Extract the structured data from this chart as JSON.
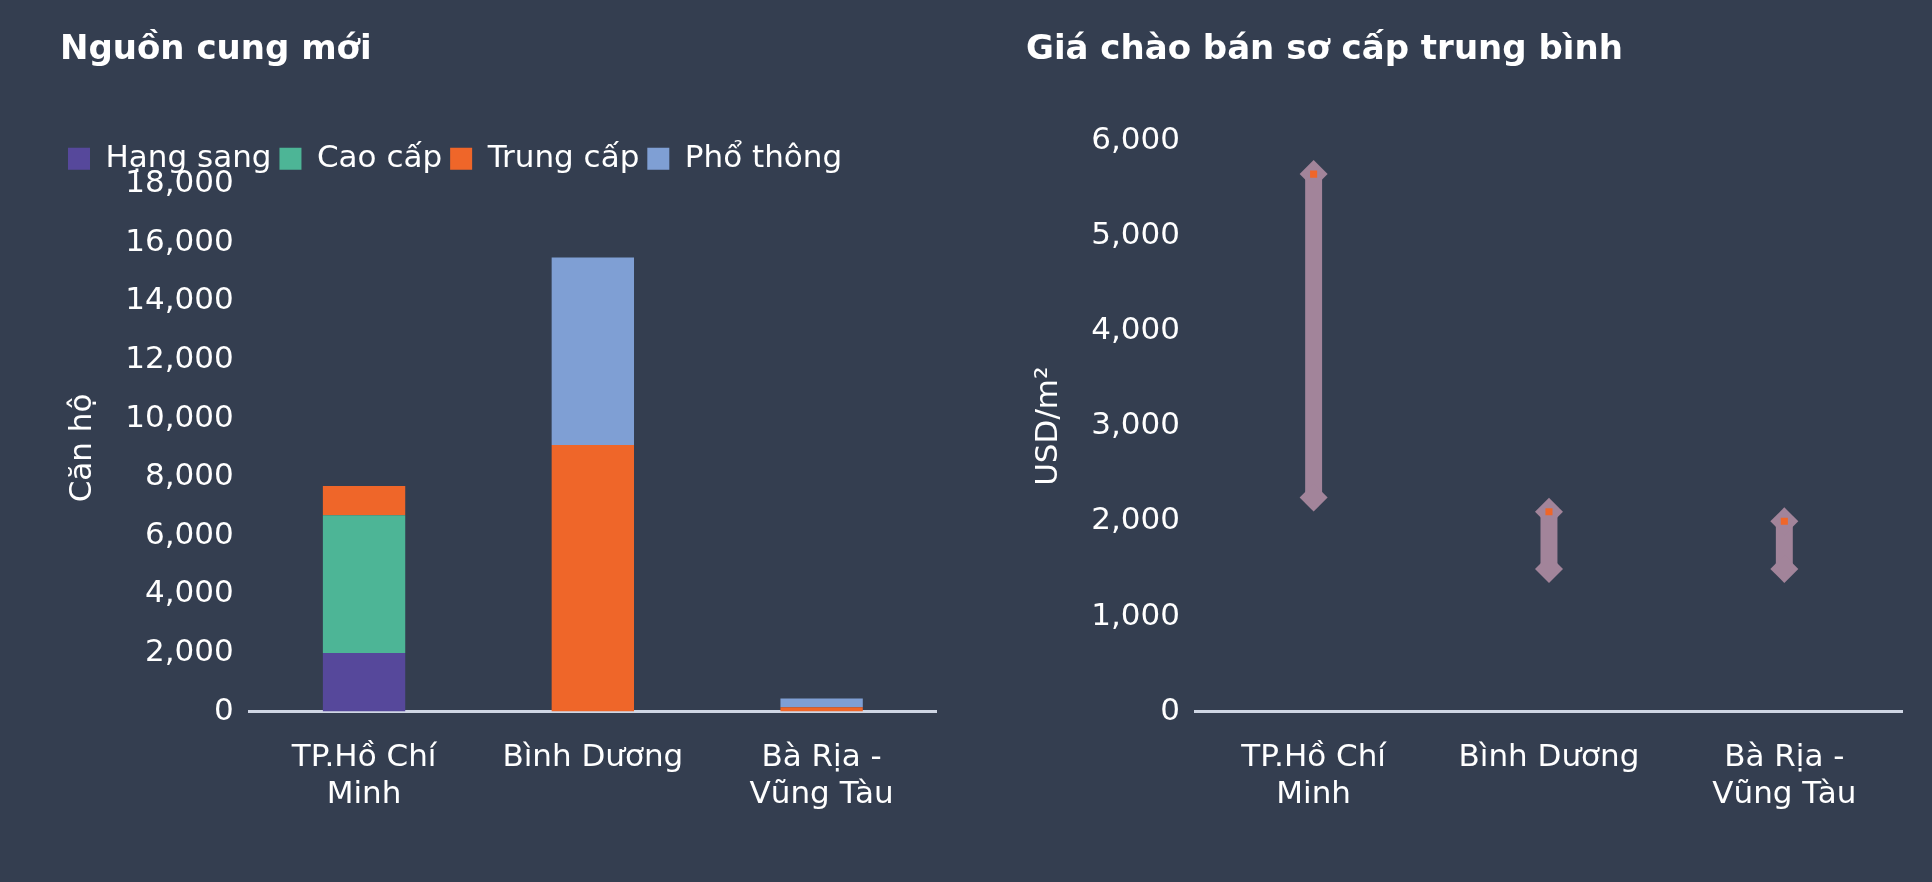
{
  "chart_data": [
    {
      "type": "bar",
      "title": "Nguồn cung mới",
      "ylabel": "Căn hộ",
      "categories": [
        "TP.Hồ Chí Minh",
        "Bình Dương",
        "Bà Rịa - Vũng Tàu"
      ],
      "stacked": true,
      "series": [
        {
          "name": "Hạng sang",
          "color": "#56489b",
          "values": [
            2000,
            0,
            0
          ]
        },
        {
          "name": "Cao cấp",
          "color": "#4db596",
          "values": [
            4700,
            0,
            0
          ]
        },
        {
          "name": "Trung cấp",
          "color": "#ef6629",
          "values": [
            1000,
            9100,
            150
          ]
        },
        {
          "name": "Phổ thông",
          "color": "#7f9fd4",
          "values": [
            0,
            6400,
            300
          ]
        }
      ],
      "ylim": [
        0,
        18000
      ],
      "yticks": [
        0,
        {
          "value": 2000,
          "label": "2,000"
        },
        {
          "value": 4000,
          "label": "4,000"
        },
        {
          "value": 6000,
          "label": "6,000"
        },
        {
          "value": 8000,
          "label": "8,000"
        },
        {
          "value": 10000,
          "label": "10,000"
        },
        {
          "value": 12000,
          "label": "12,000"
        },
        {
          "value": 14000,
          "label": "14,000"
        },
        {
          "value": 16000,
          "label": "16,000"
        },
        {
          "value": 18000,
          "label": "18,000"
        }
      ],
      "grid": false,
      "legend": "top left"
    },
    {
      "type": "bar",
      "title": "Giá chào bán sơ cấp trung bình",
      "ylabel": "USD/m²",
      "categories": [
        "TP.Hồ Chí Minh",
        "Bình Dương",
        "Bà Rịa - Vũng Tàu"
      ],
      "series": [
        {
          "type": "bar",
          "color": "#a2849a",
          "base": [
            2250,
            1500,
            1500
          ],
          "values": [
            3400,
            600,
            500
          ]
        },
        {
          "type": "scatter",
          "color": "#a2849a",
          "marker": "diamond",
          "x": [
            "TP.Hồ Chí Minh",
            "Bình Dương",
            "Bà Rịa - Vũng Tàu"
          ],
          "values": [
            5650,
            2100,
            2000
          ]
        },
        {
          "type": "scatter",
          "color": "#a2849a",
          "marker": "diamond",
          "x": [
            "TP.Hồ Chí Minh",
            "Bình Dương",
            "Bà Rịa - Vũng Tàu"
          ],
          "values": [
            2250,
            1500,
            1500
          ]
        },
        {
          "type": "scatter",
          "color": "#ef6629",
          "marker": "square",
          "x": [
            "TP.Hồ Chí Minh",
            "Bình Dương",
            "Bà Rịa - Vũng Tàu"
          ],
          "values": [
            5650,
            2100,
            2000
          ]
        }
      ],
      "ylim": [
        0,
        6000
      ],
      "yticks": [
        0,
        {
          "value": 1000,
          "label": "1,000"
        },
        {
          "value": 2000,
          "label": "2,000"
        },
        {
          "value": 3000,
          "label": "3,000"
        },
        {
          "value": 4000,
          "label": "4,000"
        },
        {
          "value": 5000,
          "label": "5,000"
        },
        {
          "value": 6000,
          "label": "6,000"
        }
      ],
      "grid": false,
      "legend": false
    }
  ]
}
